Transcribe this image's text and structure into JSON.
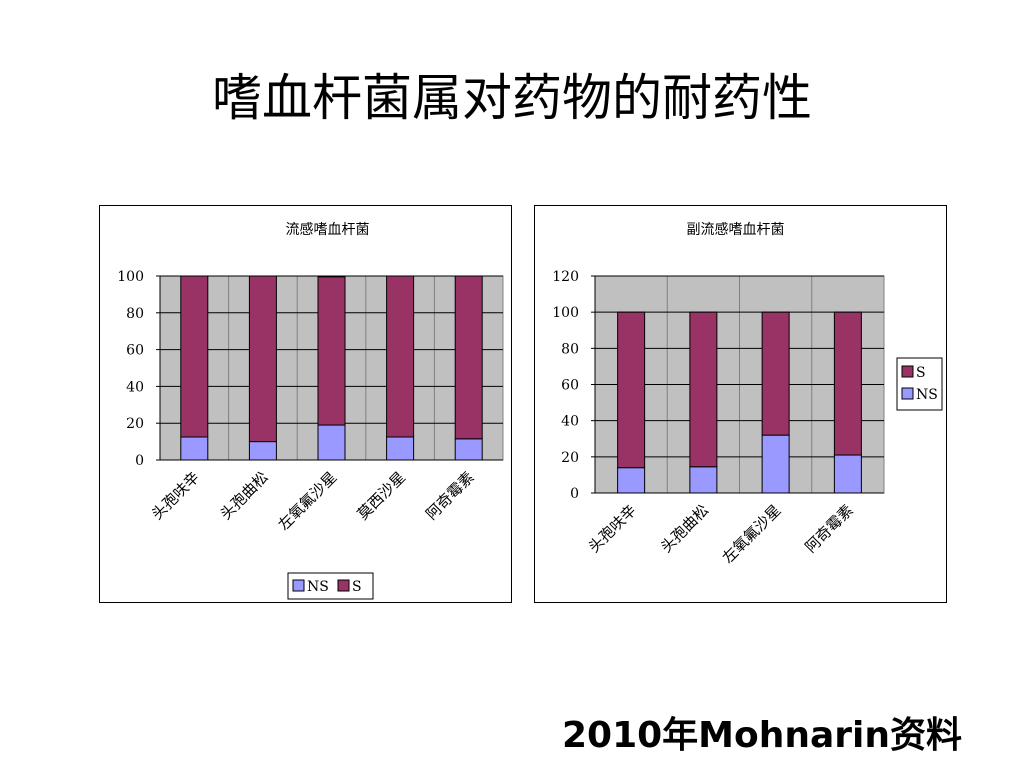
{
  "slide": {
    "title": "嗜血杆菌属对药物的耐药性",
    "footer": "2010年Mohnarin资料"
  },
  "colors": {
    "ns": "#9999FF",
    "s": "#993366",
    "plot_bg": "#C0C0C0"
  },
  "chart_data": [
    {
      "type": "bar",
      "stacked": true,
      "title": "流感嗜血杆菌",
      "categories": [
        "头孢呋辛",
        "头孢曲松",
        "左氧氟沙星",
        "莫西沙星",
        "阿奇霉素"
      ],
      "series": [
        {
          "name": "NS",
          "values": [
            12.5,
            10,
            19,
            12.5,
            11.5
          ]
        },
        {
          "name": "S",
          "values": [
            87.5,
            90,
            80.5,
            87.5,
            88.5
          ]
        }
      ],
      "ylim": [
        0,
        100
      ],
      "yticks": [
        0,
        20,
        40,
        60,
        80,
        100
      ],
      "grid": true,
      "legend": {
        "position": "bottom",
        "order": [
          "NS",
          "S"
        ]
      }
    },
    {
      "type": "bar",
      "stacked": true,
      "title": "副流感嗜血杆菌",
      "categories": [
        "头孢呋辛",
        "头孢曲松",
        "左氧氟沙星",
        "阿奇霉素"
      ],
      "series": [
        {
          "name": "NS",
          "values": [
            14,
            14.5,
            32,
            21
          ]
        },
        {
          "name": "S",
          "values": [
            86,
            85.5,
            68,
            79
          ]
        }
      ],
      "ylim": [
        0,
        120
      ],
      "yticks": [
        0,
        20,
        40,
        60,
        80,
        100,
        120
      ],
      "grid": true,
      "legend": {
        "position": "right",
        "order": [
          "S",
          "NS"
        ]
      }
    }
  ]
}
